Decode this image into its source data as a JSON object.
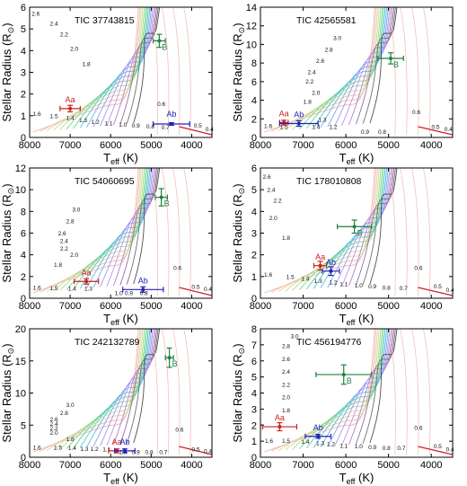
{
  "figure": {
    "xlabel_main": "T",
    "xlabel_sub": "eff",
    "xlabel_unit": " (K)",
    "ylabel": "Stellar Radius (R",
    "ylabel_sym": "⊙",
    "ylabel_end": ")"
  },
  "chart_data": [
    {
      "type": "scatter",
      "title": "TIC 37743815",
      "xlim": [
        8000,
        3500
      ],
      "ylim": [
        0,
        6
      ],
      "xticks": [
        8000,
        7000,
        6000,
        5000,
        4000
      ],
      "yticks": [
        0,
        1,
        2,
        3,
        4,
        5,
        6
      ],
      "points": [
        {
          "label": "Aa",
          "x": 7000,
          "y": 1.33,
          "xerr": 250,
          "yerr": 0.15,
          "color": "#cc2020"
        },
        {
          "label": "Ab",
          "x": 4500,
          "y": 0.62,
          "xerr": 450,
          "yerr": 0.06,
          "color": "#2020bb"
        },
        {
          "label": "B",
          "x": 4800,
          "y": 4.45,
          "xerr": 150,
          "yerr": 0.3,
          "color": "#208040"
        }
      ],
      "mass_labels": [
        {
          "t": "2.6",
          "x": 7850,
          "y": 5.6
        },
        {
          "t": "2.4",
          "x": 7400,
          "y": 5.15
        },
        {
          "t": "2.2",
          "x": 7150,
          "y": 4.65
        },
        {
          "t": "2.0",
          "x": 6900,
          "y": 4.0
        },
        {
          "t": "1.8",
          "x": 6600,
          "y": 3.3
        },
        {
          "t": "1.6",
          "x": 7820,
          "y": 1.0
        },
        {
          "t": "1.5",
          "x": 7400,
          "y": 0.9
        },
        {
          "t": "1.4",
          "x": 7000,
          "y": 0.8
        },
        {
          "t": "1.3",
          "x": 6680,
          "y": 0.7
        },
        {
          "t": "1.2",
          "x": 6380,
          "y": 0.62
        },
        {
          "t": "1.1",
          "x": 6050,
          "y": 0.55
        },
        {
          "t": "1.0",
          "x": 5700,
          "y": 0.5
        },
        {
          "t": "0.9",
          "x": 5380,
          "y": 0.45
        },
        {
          "t": "0.8",
          "x": 5020,
          "y": 0.42
        },
        {
          "t": "0.7",
          "x": 4650,
          "y": 0.38
        },
        {
          "t": "0.6",
          "x": 4750,
          "y": 1.45
        },
        {
          "t": "0.5",
          "x": 3850,
          "y": 0.45
        },
        {
          "t": "0.4",
          "x": 3560,
          "y": 0.3
        }
      ]
    },
    {
      "type": "scatter",
      "title": "TIC 42565581",
      "xlim": [
        8000,
        3500
      ],
      "ylim": [
        0,
        14
      ],
      "xticks": [
        8000,
        7000,
        6000,
        5000,
        4000
      ],
      "yticks": [
        0,
        2,
        4,
        6,
        8,
        10,
        12,
        14
      ],
      "points": [
        {
          "label": "Aa",
          "x": 7450,
          "y": 1.6,
          "xerr": 100,
          "yerr": 0.25,
          "color": "#cc2020"
        },
        {
          "label": "Ab",
          "x": 7100,
          "y": 1.5,
          "xerr": 450,
          "yerr": 0.3,
          "color": "#2020bb"
        },
        {
          "label": "B",
          "x": 4950,
          "y": 8.5,
          "xerr": 300,
          "yerr": 0.6,
          "color": "#208040"
        }
      ],
      "mass_labels": [
        {
          "t": "3.0",
          "x": 6200,
          "y": 10.5
        },
        {
          "t": "2.8",
          "x": 6400,
          "y": 9.2
        },
        {
          "t": "2.6",
          "x": 6600,
          "y": 8.0
        },
        {
          "t": "2.4",
          "x": 6800,
          "y": 6.8
        },
        {
          "t": "2.2",
          "x": 6850,
          "y": 5.8
        },
        {
          "t": "2.0",
          "x": 6700,
          "y": 4.6
        },
        {
          "t": "1.8",
          "x": 6900,
          "y": 3.6
        },
        {
          "t": "1.6",
          "x": 7820,
          "y": 1.0
        },
        {
          "t": "1.5",
          "x": 7450,
          "y": 0.9
        },
        {
          "t": "1.4",
          "x": 6700,
          "y": 0.9
        },
        {
          "t": "1.3",
          "x": 6550,
          "y": 1.7
        },
        {
          "t": "1.2",
          "x": 6300,
          "y": 0.9
        },
        {
          "t": "0.9",
          "x": 5550,
          "y": 0.4
        },
        {
          "t": "0.8",
          "x": 5150,
          "y": 0.4
        },
        {
          "t": "0.6",
          "x": 4350,
          "y": 2.5
        },
        {
          "t": "0.5",
          "x": 3900,
          "y": 0.9
        },
        {
          "t": "0.4",
          "x": 3600,
          "y": 0.7
        }
      ]
    },
    {
      "type": "scatter",
      "title": "TIC 54060695",
      "xlim": [
        8000,
        3500
      ],
      "ylim": [
        0,
        12
      ],
      "xticks": [
        8000,
        7000,
        6000,
        5000,
        4000
      ],
      "yticks": [
        0,
        2,
        4,
        6,
        8,
        10,
        12
      ],
      "points": [
        {
          "label": "Aa",
          "x": 6600,
          "y": 1.55,
          "xerr": 300,
          "yerr": 0.25,
          "color": "#cc2020"
        },
        {
          "label": "Ab",
          "x": 5200,
          "y": 0.8,
          "xerr": 500,
          "yerr": 0.25,
          "color": "#2020bb"
        },
        {
          "label": "B",
          "x": 4750,
          "y": 9.3,
          "xerr": 150,
          "yerr": 0.8,
          "color": "#208040"
        }
      ],
      "mass_labels": [
        {
          "t": "3.0",
          "x": 6850,
          "y": 8.0
        },
        {
          "t": "2.8",
          "x": 7000,
          "y": 6.9
        },
        {
          "t": "2.6",
          "x": 7200,
          "y": 5.8
        },
        {
          "t": "2.4",
          "x": 7150,
          "y": 5.1
        },
        {
          "t": "2.2",
          "x": 7150,
          "y": 4.4
        },
        {
          "t": "2.0",
          "x": 6900,
          "y": 3.8
        },
        {
          "t": "1.8",
          "x": 7300,
          "y": 2.9
        },
        {
          "t": "1.6",
          "x": 7820,
          "y": 0.8
        },
        {
          "t": "1.5",
          "x": 7400,
          "y": 0.75
        },
        {
          "t": "1.4",
          "x": 6950,
          "y": 0.7
        },
        {
          "t": "1.3",
          "x": 6550,
          "y": 0.7
        },
        {
          "t": "1.0",
          "x": 5800,
          "y": 0.3
        },
        {
          "t": "0.9",
          "x": 5550,
          "y": 0.3
        },
        {
          "t": "0.8",
          "x": 5180,
          "y": 0.3
        },
        {
          "t": "0.6",
          "x": 4350,
          "y": 2.6
        },
        {
          "t": "0.5",
          "x": 3900,
          "y": 0.85
        },
        {
          "t": "0.4",
          "x": 3600,
          "y": 0.65
        }
      ]
    },
    {
      "type": "scatter",
      "title": "TIC 178010808",
      "xlim": [
        8000,
        3500
      ],
      "ylim": [
        0,
        6
      ],
      "xticks": [
        8000,
        7000,
        6000,
        5000,
        4000
      ],
      "yticks": [
        0,
        1,
        2,
        3,
        4,
        5,
        6
      ],
      "points": [
        {
          "label": "Aa",
          "x": 6600,
          "y": 1.5,
          "xerr": 150,
          "yerr": 0.2,
          "color": "#cc2020"
        },
        {
          "label": "Ab",
          "x": 6350,
          "y": 1.25,
          "xerr": 200,
          "yerr": 0.2,
          "color": "#2020bb"
        },
        {
          "label": "B",
          "x": 5800,
          "y": 3.3,
          "xerr": 400,
          "yerr": 0.3,
          "color": "#208040"
        }
      ],
      "mass_labels": [
        {
          "t": "2.6",
          "x": 7850,
          "y": 5.5
        },
        {
          "t": "2.4",
          "x": 7750,
          "y": 4.9
        },
        {
          "t": "2.2",
          "x": 7600,
          "y": 4.4
        },
        {
          "t": "2.0",
          "x": 7700,
          "y": 3.6
        },
        {
          "t": "1.8",
          "x": 7400,
          "y": 2.7
        },
        {
          "t": "1.6",
          "x": 7820,
          "y": 1.0
        },
        {
          "t": "1.5",
          "x": 7300,
          "y": 0.9
        },
        {
          "t": "1.4",
          "x": 6950,
          "y": 0.8
        },
        {
          "t": "1.3",
          "x": 6650,
          "y": 0.7
        },
        {
          "t": "1.2",
          "x": 6300,
          "y": 0.65
        },
        {
          "t": "1.1",
          "x": 6050,
          "y": 0.55
        },
        {
          "t": "1.0",
          "x": 5700,
          "y": 0.5
        },
        {
          "t": "0.9",
          "x": 5380,
          "y": 0.45
        },
        {
          "t": "0.8",
          "x": 5050,
          "y": 0.4
        },
        {
          "t": "0.7",
          "x": 4650,
          "y": 0.38
        },
        {
          "t": "0.6",
          "x": 4300,
          "y": 1.3
        },
        {
          "t": "0.5",
          "x": 3850,
          "y": 0.45
        },
        {
          "t": "0.4",
          "x": 3560,
          "y": 0.3
        }
      ]
    },
    {
      "type": "scatter",
      "title": "TIC 242132789",
      "xlim": [
        8000,
        3500
      ],
      "ylim": [
        0,
        20
      ],
      "xticks": [
        8000,
        7000,
        6000,
        5000,
        4000
      ],
      "yticks": [
        0,
        5,
        10,
        15,
        20
      ],
      "points": [
        {
          "label": "Aa",
          "x": 5850,
          "y": 1.0,
          "xerr": 200,
          "yerr": 0.3,
          "color": "#cc2020"
        },
        {
          "label": "Ab",
          "x": 5650,
          "y": 1.0,
          "xerr": 250,
          "yerr": 0.3,
          "color": "#2020bb"
        },
        {
          "label": "B",
          "x": 4550,
          "y": 15.5,
          "xerr": 100,
          "yerr": 1.5,
          "color": "#208040"
        }
      ],
      "mass_labels": [
        {
          "t": "3.0",
          "x": 7000,
          "y": 7.8
        },
        {
          "t": "2.8",
          "x": 7150,
          "y": 6.6
        },
        {
          "t": "2.6",
          "x": 7400,
          "y": 5.6
        },
        {
          "t": "2.4",
          "x": 7400,
          "y": 4.9
        },
        {
          "t": "2.2",
          "x": 7400,
          "y": 4.2
        },
        {
          "t": "2.0",
          "x": 7400,
          "y": 3.5
        },
        {
          "t": "1.8",
          "x": 7000,
          "y": 2.5
        },
        {
          "t": "1.6",
          "x": 7820,
          "y": 1.2
        },
        {
          "t": "1.5",
          "x": 7300,
          "y": 1.2
        },
        {
          "t": "1.4",
          "x": 6950,
          "y": 1.1
        },
        {
          "t": "1.3",
          "x": 6650,
          "y": 1.0
        },
        {
          "t": "1.2",
          "x": 6400,
          "y": 1.0
        },
        {
          "t": "1.1",
          "x": 6100,
          "y": 0.9
        },
        {
          "t": "1.0",
          "x": 5700,
          "y": 0.5
        },
        {
          "t": "0.9",
          "x": 5380,
          "y": 0.5
        },
        {
          "t": "0.8",
          "x": 5050,
          "y": 0.5
        },
        {
          "t": "0.7",
          "x": 4700,
          "y": 0.5
        },
        {
          "t": "0.6",
          "x": 4300,
          "y": 4.0
        },
        {
          "t": "0.5",
          "x": 3900,
          "y": 0.9
        },
        {
          "t": "0.4",
          "x": 3600,
          "y": 0.6
        }
      ]
    },
    {
      "type": "scatter",
      "title": "TIC 456194776",
      "xlim": [
        8000,
        3500
      ],
      "ylim": [
        0,
        8
      ],
      "xticks": [
        8000,
        7000,
        6000,
        5000,
        4000
      ],
      "yticks": [
        0,
        1,
        2,
        3,
        4,
        5,
        6,
        7,
        8
      ],
      "points": [
        {
          "label": "Aa",
          "x": 7550,
          "y": 1.9,
          "xerr": 400,
          "yerr": 0.25,
          "color": "#cc2020"
        },
        {
          "label": "Ab",
          "x": 6650,
          "y": 1.3,
          "xerr": 300,
          "yerr": 0.12,
          "color": "#2020bb"
        },
        {
          "label": "B",
          "x": 6050,
          "y": 5.15,
          "xerr": 650,
          "yerr": 0.6,
          "color": "#208040"
        }
      ],
      "mass_labels": [
        {
          "t": "3.0",
          "x": 7200,
          "y": 7.4
        },
        {
          "t": "2.8",
          "x": 7400,
          "y": 6.8
        },
        {
          "t": "2.6",
          "x": 7400,
          "y": 6.0
        },
        {
          "t": "2.4",
          "x": 7400,
          "y": 5.2
        },
        {
          "t": "2.2",
          "x": 7400,
          "y": 4.4
        },
        {
          "t": "2.0",
          "x": 7400,
          "y": 3.6
        },
        {
          "t": "1.8",
          "x": 7400,
          "y": 2.8
        },
        {
          "t": "1.6",
          "x": 7800,
          "y": 0.9
        },
        {
          "t": "1.5",
          "x": 7400,
          "y": 0.9
        },
        {
          "t": "1.4",
          "x": 6950,
          "y": 0.85
        },
        {
          "t": "1.3",
          "x": 6600,
          "y": 0.75
        },
        {
          "t": "1.2",
          "x": 6350,
          "y": 0.7
        },
        {
          "t": "1.1",
          "x": 6050,
          "y": 0.6
        },
        {
          "t": "1.0",
          "x": 5700,
          "y": 0.55
        },
        {
          "t": "0.9",
          "x": 5380,
          "y": 0.5
        },
        {
          "t": "0.8",
          "x": 5050,
          "y": 0.45
        },
        {
          "t": "0.7",
          "x": 4700,
          "y": 0.45
        },
        {
          "t": "0.6",
          "x": 4300,
          "y": 1.7
        },
        {
          "t": "0.5",
          "x": 3850,
          "y": 0.55
        },
        {
          "t": "0.4",
          "x": 3560,
          "y": 0.35
        }
      ]
    }
  ]
}
